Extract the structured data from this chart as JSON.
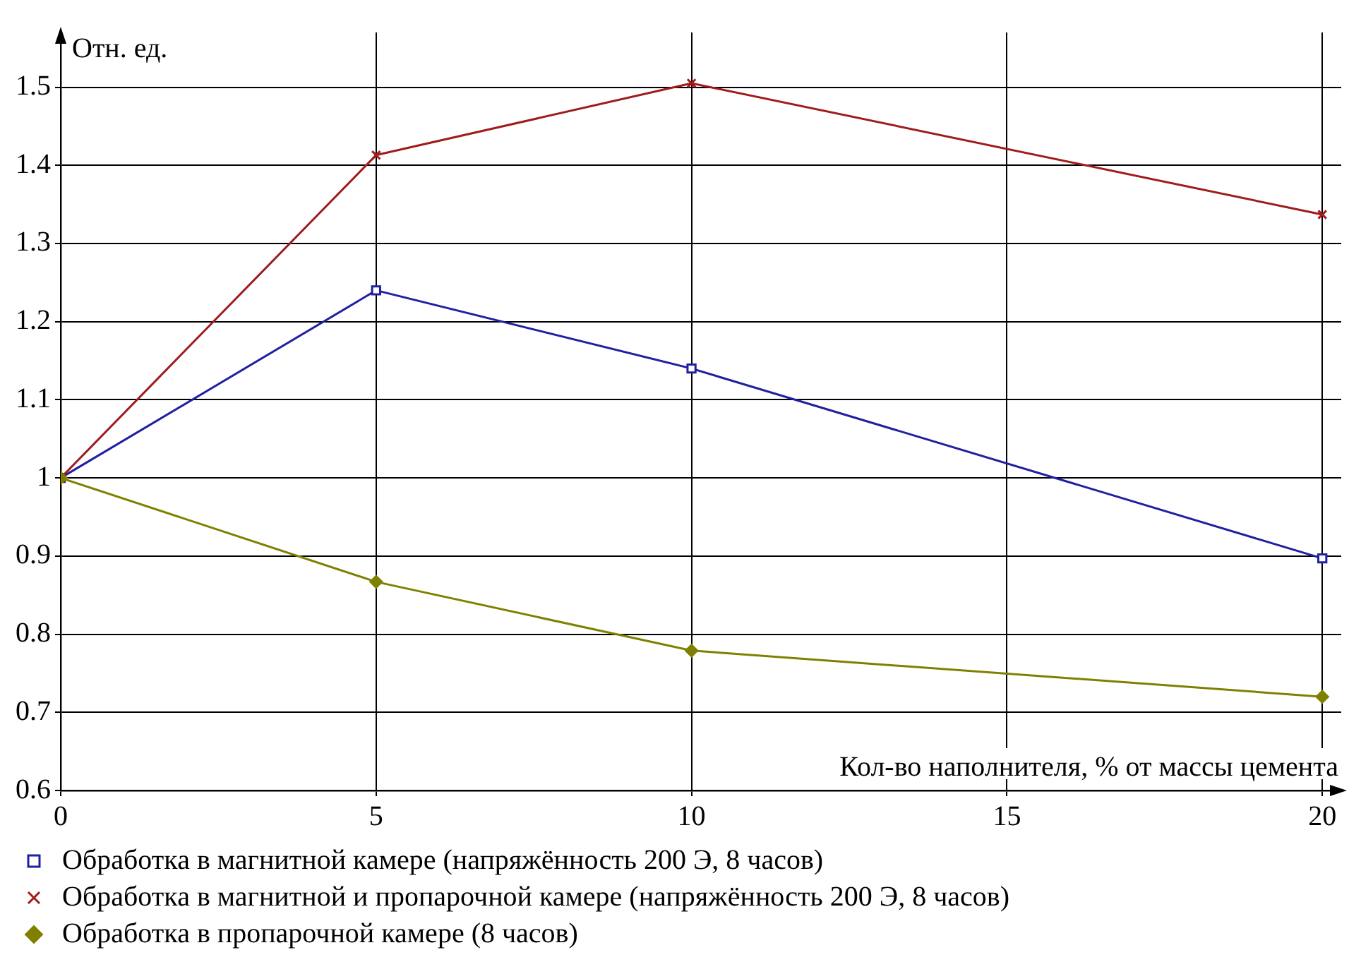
{
  "chart_data": {
    "type": "line",
    "xlabel": "Кол-во наполнителя, % от массы цемента",
    "ylabel": "Отн. ед.",
    "x": [
      0,
      5,
      10,
      20
    ],
    "series": [
      {
        "name": "Обработка в магнитной камере (напряжённость 200 Э, 8 часов)",
        "color": "#2020a0",
        "marker": "square",
        "values": [
          1,
          1.24,
          1.14,
          0.897
        ]
      },
      {
        "name": "Обработка в магнитной и пропарочной камере (напряжённость 200 Э, 8 часов)",
        "color": "#a01c1c",
        "marker": "cross",
        "values": [
          1,
          1.413,
          1.505,
          1.337
        ]
      },
      {
        "name": "Обработка в пропарочной камере (8 часов)",
        "color": "#808000",
        "marker": "diamond",
        "values": [
          1,
          0.867,
          0.779,
          0.72
        ]
      }
    ],
    "xlim": [
      0,
      20.3
    ],
    "xticks": [
      0,
      5,
      10,
      15,
      20
    ],
    "ylim": [
      0.6,
      1.57
    ],
    "yticks": [
      0.6,
      0.7,
      0.8,
      0.9,
      1,
      1.1,
      1.2,
      1.3,
      1.4,
      1.5
    ],
    "grid": true,
    "legend": "bottom",
    "line_style": "solid"
  }
}
